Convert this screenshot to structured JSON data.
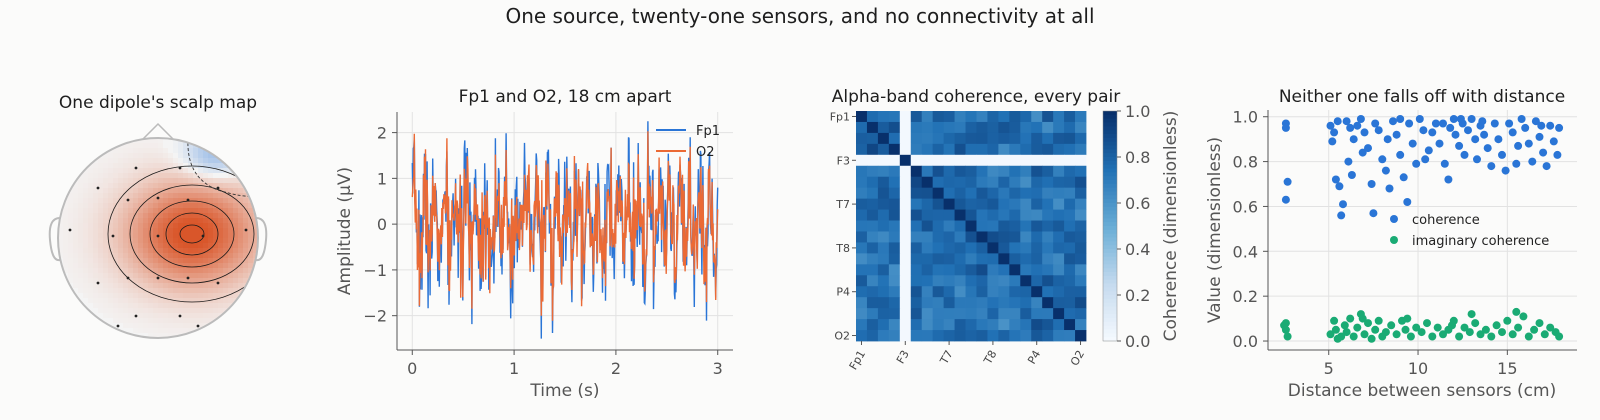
{
  "suptitle": "One source, twenty-one sensors, and no connectivity at all",
  "colors": {
    "fp1": "#2a75d6",
    "o2": "#eb6a35",
    "coherence": "#2a75d6",
    "imag": "#1aab74",
    "pos": "#d9562a",
    "neg": "#7aa7e0"
  },
  "chart_data": [
    {
      "type": "topomap",
      "title": "One dipole's scalp map",
      "sensor_count": 21,
      "peak_polarity": "positive",
      "peak_region": "right-central",
      "negative_region": "right-frontal"
    },
    {
      "type": "line",
      "title": "Fp1 and O2, 18 cm apart",
      "xlabel": "Time (s)",
      "ylabel": "Amplitude (µV)",
      "xlim": [
        -0.15,
        3.15
      ],
      "ylim": [
        -2.75,
        2.45
      ],
      "xticks": [
        0,
        1,
        2,
        3
      ],
      "yticks": [
        -2,
        -1,
        0,
        1,
        2
      ],
      "legend_position": "top-right",
      "series": [
        {
          "name": "Fp1",
          "color_key": "fp1",
          "amplitude_sd": 0.9
        },
        {
          "name": "O2",
          "color_key": "o2",
          "amplitude_sd": 0.75
        }
      ]
    },
    {
      "type": "heatmap",
      "title": "Alpha-band coherence, every pair",
      "ticklabels": [
        "Fp1",
        "F3",
        "T7",
        "T8",
        "P4",
        "O2"
      ],
      "tick_index": [
        0,
        4,
        8,
        12,
        16,
        20
      ],
      "n": 21,
      "colorbar_label": "Coherence (dimensionless)",
      "colorbar_ticks": [
        0.0,
        0.2,
        0.4,
        0.6,
        0.8,
        1.0
      ],
      "vmin": 0,
      "vmax": 1,
      "low_row": 4,
      "diagonal": 1.0
    },
    {
      "type": "scatter",
      "title": "Neither one falls off with distance",
      "xlabel": "Distance between sensors (cm)",
      "ylabel": "Value (dimensionless)",
      "xlim": [
        1.6,
        18.9
      ],
      "ylim": [
        -0.04,
        1.03
      ],
      "xticks": [
        5,
        10,
        15
      ],
      "yticks": [
        0.0,
        0.2,
        0.4,
        0.6,
        0.8,
        1.0
      ],
      "legend_position": "center-right",
      "series": [
        {
          "name": "coherence",
          "color_key": "coherence",
          "points": [
            [
              2.6,
              0.97
            ],
            [
              2.6,
              0.95
            ],
            [
              2.7,
              0.71
            ],
            [
              2.6,
              0.63
            ],
            [
              5.1,
              0.96
            ],
            [
              5.3,
              0.93
            ],
            [
              5.5,
              0.98
            ],
            [
              5.2,
              0.89
            ],
            [
              5.4,
              0.72
            ],
            [
              5.6,
              0.69
            ],
            [
              5.8,
              0.61
            ],
            [
              5.7,
              0.56
            ],
            [
              6.0,
              0.98
            ],
            [
              6.2,
              0.95
            ],
            [
              6.4,
              0.9
            ],
            [
              6.1,
              0.8
            ],
            [
              6.3,
              0.74
            ],
            [
              6.6,
              0.96
            ],
            [
              6.8,
              0.99
            ],
            [
              7.0,
              0.93
            ],
            [
              7.2,
              0.86
            ],
            [
              7.4,
              0.7
            ],
            [
              7.5,
              0.57
            ],
            [
              7.6,
              0.97
            ],
            [
              7.8,
              0.94
            ],
            [
              8.0,
              0.81
            ],
            [
              8.2,
              0.76
            ],
            [
              8.4,
              0.68
            ],
            [
              8.6,
              0.98
            ],
            [
              8.8,
              0.92
            ],
            [
              9.0,
              0.83
            ],
            [
              9.2,
              0.73
            ],
            [
              9.4,
              0.62
            ],
            [
              9.0,
              0.99
            ],
            [
              9.5,
              0.97
            ],
            [
              9.7,
              0.88
            ],
            [
              9.9,
              0.79
            ],
            [
              10.1,
              0.99
            ],
            [
              10.3,
              0.94
            ],
            [
              10.6,
              0.85
            ],
            [
              10.8,
              0.93
            ],
            [
              11.0,
              0.97
            ],
            [
              11.2,
              0.88
            ],
            [
              11.5,
              0.79
            ],
            [
              11.7,
              0.72
            ],
            [
              11.8,
              0.95
            ],
            [
              12.0,
              0.99
            ],
            [
              12.1,
              0.92
            ],
            [
              12.3,
              0.87
            ],
            [
              12.5,
              0.97
            ],
            [
              12.6,
              0.83
            ],
            [
              12.8,
              0.94
            ],
            [
              13.0,
              0.99
            ],
            [
              13.2,
              0.9
            ],
            [
              13.3,
              0.81
            ],
            [
              13.5,
              0.96
            ],
            [
              13.7,
              0.92
            ],
            [
              13.9,
              0.86
            ],
            [
              14.1,
              0.78
            ],
            [
              14.3,
              0.97
            ],
            [
              14.5,
              0.9
            ],
            [
              14.7,
              0.83
            ],
            [
              14.9,
              0.76
            ],
            [
              15.1,
              0.97
            ],
            [
              15.3,
              0.93
            ],
            [
              15.6,
              0.87
            ],
            [
              15.8,
              0.99
            ],
            [
              16.0,
              0.95
            ],
            [
              16.2,
              0.88
            ],
            [
              16.4,
              0.8
            ],
            [
              16.6,
              0.98
            ],
            [
              16.8,
              0.91
            ],
            [
              17.0,
              0.84
            ],
            [
              17.2,
              0.78
            ],
            [
              17.4,
              0.96
            ],
            [
              17.6,
              0.89
            ],
            [
              17.8,
              0.83
            ],
            [
              17.9,
              0.95
            ],
            [
              12.4,
              0.99
            ],
            [
              13.6,
              0.98
            ],
            [
              15.5,
              0.79
            ],
            [
              16.9,
              0.96
            ],
            [
              10.4,
              0.81
            ],
            [
              8.3,
              0.9
            ],
            [
              6.9,
              0.84
            ],
            [
              11.4,
              0.97
            ]
          ]
        },
        {
          "name": "imaginary coherence",
          "color_key": "imag",
          "points": [
            [
              2.5,
              0.07
            ],
            [
              2.6,
              0.05
            ],
            [
              2.7,
              0.02
            ],
            [
              2.6,
              0.08
            ],
            [
              5.1,
              0.03
            ],
            [
              5.3,
              0.09
            ],
            [
              5.5,
              0.01
            ],
            [
              5.4,
              0.05
            ],
            [
              5.7,
              0.02
            ],
            [
              5.9,
              0.07
            ],
            [
              6.0,
              0.04
            ],
            [
              6.2,
              0.1
            ],
            [
              6.4,
              0.02
            ],
            [
              6.6,
              0.06
            ],
            [
              6.8,
              0.12
            ],
            [
              7.0,
              0.03
            ],
            [
              7.2,
              0.08
            ],
            [
              7.4,
              0.01
            ],
            [
              7.6,
              0.05
            ],
            [
              7.8,
              0.09
            ],
            [
              8.0,
              0.02
            ],
            [
              8.2,
              0.04
            ],
            [
              8.5,
              0.07
            ],
            [
              8.8,
              0.03
            ],
            [
              9.1,
              0.09
            ],
            [
              9.3,
              0.05
            ],
            [
              9.6,
              0.02
            ],
            [
              9.9,
              0.06
            ],
            [
              10.2,
              0.04
            ],
            [
              10.5,
              0.08
            ],
            [
              10.8,
              0.02
            ],
            [
              11.1,
              0.06
            ],
            [
              11.4,
              0.03
            ],
            [
              11.7,
              0.05
            ],
            [
              12.0,
              0.09
            ],
            [
              12.3,
              0.02
            ],
            [
              12.6,
              0.06
            ],
            [
              12.9,
              0.04
            ],
            [
              13.2,
              0.08
            ],
            [
              13.5,
              0.03
            ],
            [
              13.8,
              0.05
            ],
            [
              14.1,
              0.02
            ],
            [
              14.4,
              0.07
            ],
            [
              14.7,
              0.04
            ],
            [
              15.0,
              0.09
            ],
            [
              15.3,
              0.03
            ],
            [
              15.6,
              0.06
            ],
            [
              15.9,
              0.11
            ],
            [
              16.2,
              0.02
            ],
            [
              16.5,
              0.05
            ],
            [
              16.8,
              0.08
            ],
            [
              17.1,
              0.03
            ],
            [
              17.4,
              0.06
            ],
            [
              17.7,
              0.04
            ],
            [
              17.9,
              0.02
            ],
            [
              13.0,
              0.12
            ],
            [
              15.5,
              0.13
            ],
            [
              6.9,
              0.1
            ],
            [
              9.4,
              0.1
            ],
            [
              11.9,
              0.07
            ]
          ]
        }
      ]
    }
  ]
}
